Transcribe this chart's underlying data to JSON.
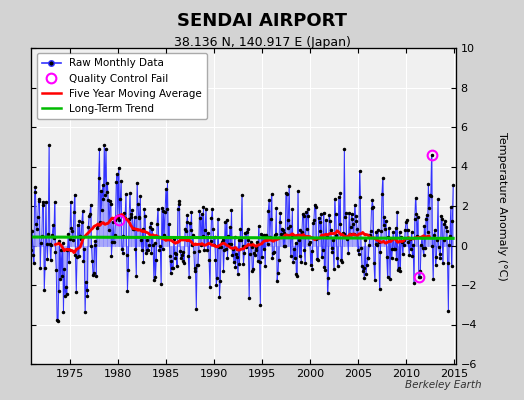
{
  "title": "SENDAI AIRPORT",
  "subtitle": "38.136 N, 140.917 E (Japan)",
  "ylabel": "Temperature Anomaly (°C)",
  "ylim": [
    -6,
    10
  ],
  "xlim": [
    1971.0,
    2015.2
  ],
  "yticks": [
    -6,
    -4,
    -2,
    0,
    2,
    4,
    6,
    8,
    10
  ],
  "xticks": [
    1975,
    1980,
    1985,
    1990,
    1995,
    2000,
    2005,
    2010,
    2015
  ],
  "background_color": "#d3d3d3",
  "plot_bg_color": "#f0f0f0",
  "raw_line_color": "#3333ff",
  "raw_fill_color": "#8888ff",
  "raw_marker_color": "#000000",
  "moving_avg_color": "#ff0000",
  "trend_color": "#00bb00",
  "qc_fail_color": "#ff00ff",
  "watermark": "Berkeley Earth",
  "start_year": 1971,
  "end_year": 2014,
  "seed": 12345,
  "moving_avg_window": 60,
  "qc_fail_years": [
    1980.2,
    2012.7,
    2011.3
  ],
  "qc_fail_values": [
    1.3,
    4.6,
    -1.6
  ]
}
